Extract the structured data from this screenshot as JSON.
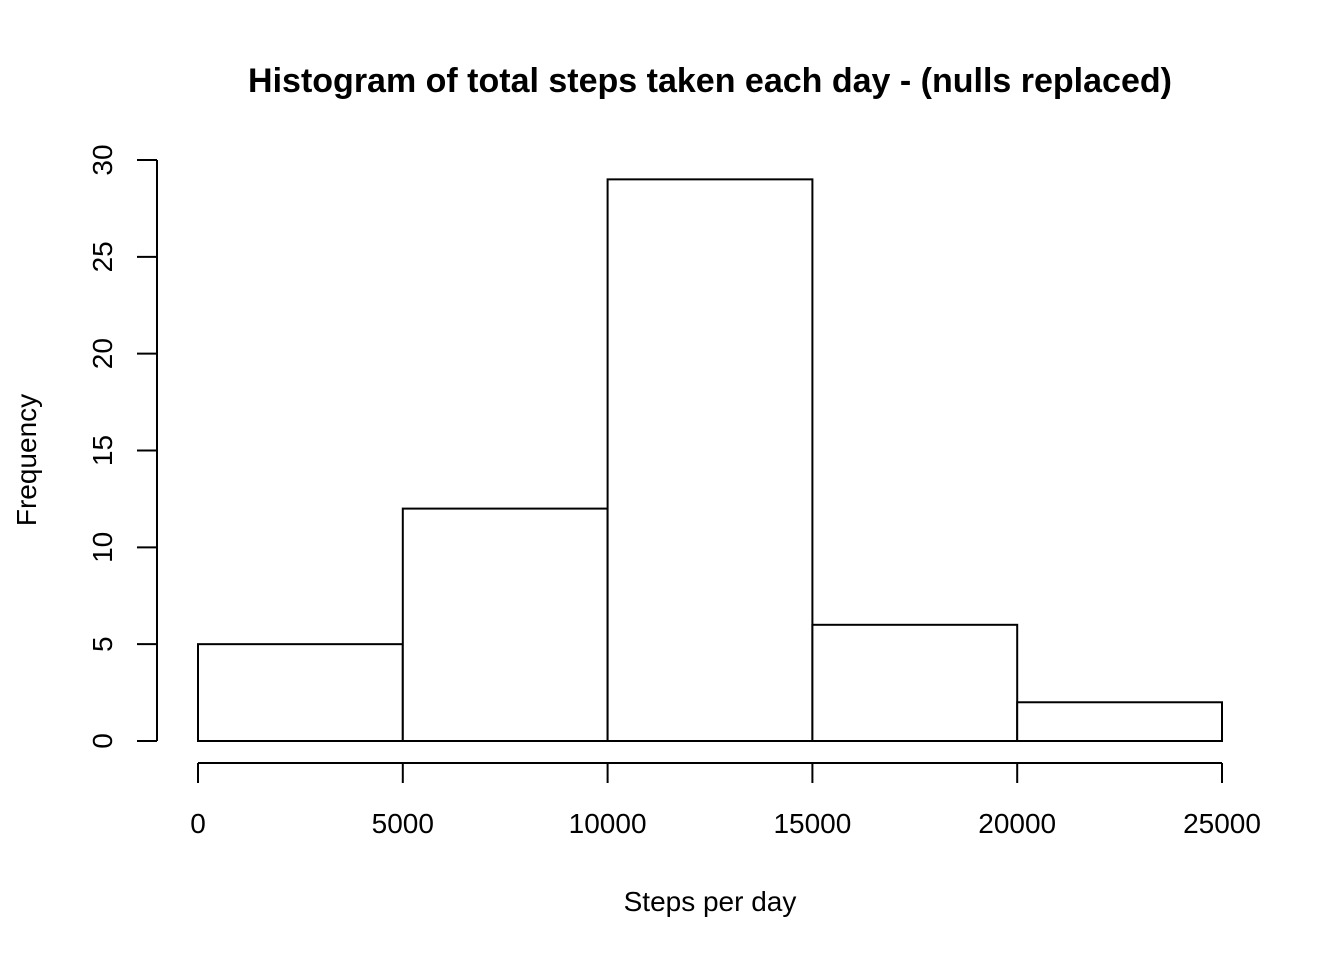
{
  "chart_data": {
    "type": "bar",
    "title": "Histogram of total steps taken each day - (nulls replaced)",
    "xlabel": "Steps per day",
    "ylabel": "Frequency",
    "bins": [
      {
        "from": 0,
        "to": 5000,
        "count": 5
      },
      {
        "from": 5000,
        "to": 10000,
        "count": 12
      },
      {
        "from": 10000,
        "to": 15000,
        "count": 29
      },
      {
        "from": 15000,
        "to": 20000,
        "count": 6
      },
      {
        "from": 20000,
        "to": 25000,
        "count": 2
      }
    ],
    "xlim": [
      0,
      25000
    ],
    "ylim": [
      0,
      30
    ],
    "x_ticks": [
      0,
      5000,
      10000,
      15000,
      20000,
      25000
    ],
    "y_ticks": [
      0,
      5,
      10,
      15,
      20,
      25,
      30
    ],
    "grid": false,
    "colors": {
      "bar_fill": "#ffffff",
      "bar_stroke": "#000000"
    }
  }
}
